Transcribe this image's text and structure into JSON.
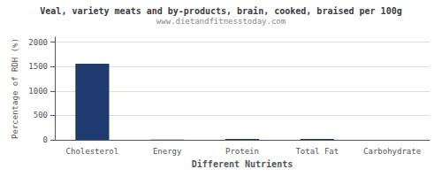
{
  "chart_data": {
    "type": "bar",
    "title": "Veal, variety meats and by-products, brain, cooked, braised per 100g",
    "subtitle": "www.dietandfitnesstoday.com",
    "xlabel": "Different Nutrients",
    "ylabel": "Percentage of RDH (%)",
    "categories": [
      "Cholesterol",
      "Energy",
      "Protein",
      "Total Fat",
      "Carbohydrate"
    ],
    "values": [
      1555,
      3,
      18,
      20,
      0
    ],
    "color": "#1e3a6e",
    "ylim": [
      0,
      2100
    ],
    "yticks": [
      0,
      500,
      1000,
      1500,
      2000
    ],
    "grid": true
  }
}
